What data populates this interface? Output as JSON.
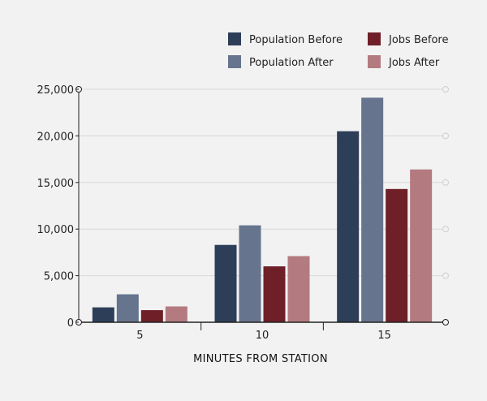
{
  "chart_data": {
    "type": "bar",
    "categories": [
      "5",
      "10",
      "15"
    ],
    "series": [
      {
        "name": "Population Before",
        "color": "#2d3e58",
        "values": [
          1600,
          8300,
          20500
        ]
      },
      {
        "name": "Population After",
        "color": "#66748d",
        "values": [
          3000,
          10400,
          24100
        ]
      },
      {
        "name": "Jobs Before",
        "color": "#6e1f27",
        "values": [
          1300,
          6000,
          14300
        ]
      },
      {
        "name": "Jobs After",
        "color": "#b37b80",
        "values": [
          1700,
          7100,
          16400
        ]
      }
    ],
    "xlabel": "MINUTES FROM STATION",
    "ylabel": "",
    "ylim": [
      0,
      25000
    ],
    "yticks": [
      0,
      5000,
      10000,
      15000,
      20000,
      25000
    ],
    "ytick_labels": [
      "0",
      "5,000",
      "10,000",
      "15,000",
      "20,000",
      "25,000"
    ],
    "grid": true,
    "legend_position": "top-right"
  }
}
